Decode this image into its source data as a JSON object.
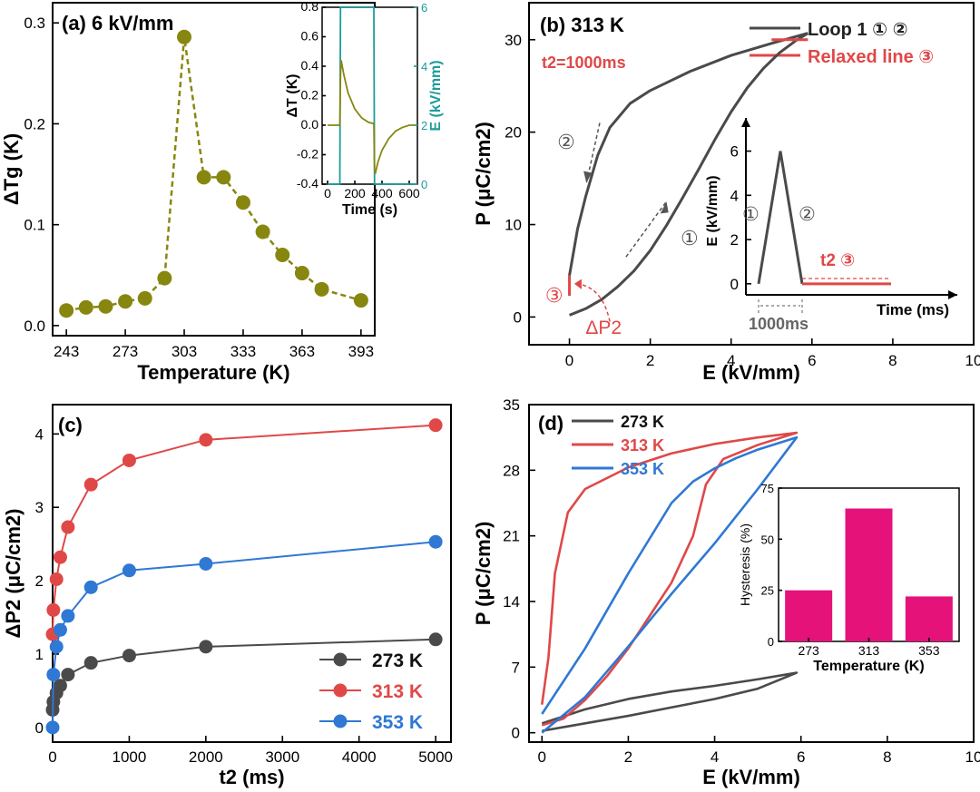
{
  "colors": {
    "olive": "#878710",
    "teal": "#1e9b9b",
    "gray": "#4a4a4a",
    "red": "#e04848",
    "blue": "#2f78d4",
    "magenta": "#e5127a"
  },
  "chart_data": [
    {
      "id": "a",
      "type": "line",
      "panel_label": "(a) 6 kV/mm",
      "xlabel": "Temperature (K)",
      "ylabel": "ΔTg (K)",
      "xlim": [
        236,
        400
      ],
      "ylim": [
        -0.01,
        0.32
      ],
      "xticks": [
        243,
        273,
        303,
        333,
        363,
        393
      ],
      "yticks": [
        0.0,
        0.1,
        0.2,
        0.3
      ],
      "series": [
        {
          "name": "ΔTg",
          "x": [
            243,
            253,
            263,
            273,
            283,
            293,
            303,
            313,
            323,
            333,
            343,
            353,
            363,
            373,
            393
          ],
          "y": [
            0.015,
            0.018,
            0.019,
            0.024,
            0.027,
            0.047,
            0.286,
            0.147,
            0.147,
            0.122,
            0.093,
            0.07,
            0.052,
            0.036,
            0.025
          ]
        }
      ],
      "inset": {
        "type": "line",
        "xlabel": "Time (s)",
        "ylabel_left": "ΔT (K)",
        "ylabel_right": "E (kV/mm)",
        "xlim": [
          -40,
          660
        ],
        "ylim_left": [
          -0.4,
          0.8
        ],
        "ylim_right": [
          0,
          6
        ],
        "xticks": [
          0,
          200,
          400,
          600
        ],
        "yticks_left": [
          -0.4,
          -0.2,
          0.0,
          0.2,
          0.4,
          0.6,
          0.8
        ],
        "yticks_right": [
          0,
          2,
          4,
          6
        ],
        "temp_trace": {
          "x": [
            0,
            90,
            95,
            100,
            120,
            150,
            200,
            250,
            300,
            340,
            345,
            350,
            370,
            400,
            450,
            500,
            550,
            600,
            640
          ],
          "y": [
            0.0,
            0.0,
            0.34,
            0.44,
            0.34,
            0.22,
            0.11,
            0.05,
            0.02,
            0.01,
            -0.3,
            -0.33,
            -0.25,
            -0.17,
            -0.09,
            -0.04,
            -0.015,
            0.0,
            0.0
          ]
        },
        "field_trace": {
          "x": [
            0,
            90,
            95,
            340,
            345,
            640
          ],
          "y": [
            0,
            0,
            6,
            6,
            0,
            0
          ]
        }
      }
    },
    {
      "id": "b",
      "type": "line",
      "panel_label": "(b) 313 K",
      "t2_label": "t2=1000ms",
      "xlabel": "E (kV/mm)",
      "ylabel": "P (μC/cm2)",
      "xlim": [
        -1,
        10
      ],
      "ylim": [
        -3,
        34
      ],
      "xticks": [
        0,
        2,
        4,
        6,
        8,
        10
      ],
      "yticks": [
        0,
        10,
        20,
        30
      ],
      "legend": [
        {
          "label": "Loop 1 ① ②",
          "color": "#4a4a4a"
        },
        {
          "label": "Relaxed line ③",
          "color": "#e04848"
        }
      ],
      "series": [
        {
          "name": "Loop 1 up ①",
          "x": [
            0.0,
            0.4,
            0.8,
            1.2,
            1.6,
            2.0,
            2.4,
            2.8,
            3.2,
            3.6,
            4.0,
            4.4,
            4.8,
            5.2,
            5.6,
            5.9
          ],
          "y": [
            0.2,
            0.9,
            1.9,
            3.3,
            5.0,
            7.2,
            9.9,
            12.9,
            16.0,
            19.2,
            22.2,
            24.8,
            26.9,
            28.6,
            29.9,
            30.7
          ]
        },
        {
          "name": "Loop 1 down ②",
          "x": [
            5.9,
            5.0,
            4.0,
            3.0,
            2.0,
            1.5,
            1.0,
            0.7,
            0.4,
            0.2,
            0.08,
            0.0
          ],
          "y": [
            30.7,
            29.6,
            28.3,
            26.6,
            24.5,
            23.1,
            20.5,
            17.5,
            13.0,
            9.5,
            6.5,
            4.5
          ]
        },
        {
          "name": "Relaxed line ③",
          "x": [
            0.0,
            0.0
          ],
          "y": [
            4.5,
            2.3
          ]
        },
        {
          "name": "Relaxed line ③ high field",
          "x": [
            5.0,
            5.9
          ],
          "y": [
            30.0,
            30.0
          ]
        }
      ],
      "annotations": [
        "②",
        "①",
        "③",
        "ΔP2"
      ],
      "inset": {
        "xlabel": "Time (ms)",
        "ylabel": "E (kV/mm)",
        "yticks": [
          0,
          2,
          4,
          6
        ],
        "ylim": [
          -0.5,
          7.5
        ],
        "triangle": {
          "x": [
            0,
            1,
            2
          ],
          "y": [
            0,
            6,
            0
          ]
        },
        "labels": [
          "①",
          "②",
          "t2 ③",
          "1000ms"
        ]
      }
    },
    {
      "id": "c",
      "type": "line",
      "panel_label": "(c)",
      "xlabel": "t2 (ms)",
      "ylabel": "ΔP2 (μC/cm2)",
      "xlim": [
        0,
        5200
      ],
      "ylim": [
        -0.2,
        4.4
      ],
      "xticks": [
        0,
        1000,
        2000,
        3000,
        4000,
        5000
      ],
      "yticks": [
        0,
        1,
        2,
        3,
        4
      ],
      "legend": [
        {
          "label": "273 K",
          "color": "#4a4a4a"
        },
        {
          "label": "313 K",
          "color": "#e04848"
        },
        {
          "label": "353 K",
          "color": "#2f78d4"
        }
      ],
      "series": [
        {
          "name": "273 K",
          "x": [
            0,
            10,
            50,
            100,
            200,
            500,
            1000,
            2000,
            5000
          ],
          "y": [
            0.24,
            0.35,
            0.47,
            0.57,
            0.72,
            0.88,
            0.98,
            1.1,
            1.2
          ]
        },
        {
          "name": "313 K",
          "x": [
            0,
            10,
            50,
            100,
            200,
            500,
            1000,
            2000,
            5000
          ],
          "y": [
            1.27,
            1.6,
            2.02,
            2.32,
            2.73,
            3.31,
            3.64,
            3.92,
            4.12
          ]
        },
        {
          "name": "353 K",
          "x": [
            0,
            10,
            50,
            100,
            200,
            500,
            1000,
            2000,
            5000
          ],
          "y": [
            0.0,
            0.72,
            1.1,
            1.33,
            1.52,
            1.91,
            2.14,
            2.23,
            2.53
          ]
        }
      ]
    },
    {
      "id": "d",
      "type": "line",
      "panel_label": "(d)",
      "xlabel": "E (kV/mm)",
      "ylabel": "P (μC/cm2)",
      "xlim": [
        -0.3,
        10
      ],
      "ylim": [
        -1,
        35
      ],
      "xticks": [
        0,
        2,
        4,
        6,
        8,
        10
      ],
      "yticks": [
        0,
        7,
        14,
        21,
        28,
        35
      ],
      "legend": [
        {
          "label": "273 K",
          "color": "#4a4a4a"
        },
        {
          "label": "313 K",
          "color": "#e04848"
        },
        {
          "label": "353 K",
          "color": "#2f78d4"
        }
      ],
      "series": [
        {
          "name": "273 K",
          "x": [
            0.0,
            1.0,
            2.0,
            3.0,
            4.0,
            5.0,
            5.9,
            5.0,
            4.0,
            3.0,
            2.0,
            1.0,
            0.0
          ],
          "y": [
            0.2,
            1.0,
            1.8,
            2.7,
            3.6,
            4.7,
            6.4,
            5.7,
            5.0,
            4.4,
            3.6,
            2.5,
            1.0
          ]
        },
        {
          "name": "313 K",
          "x": [
            0.0,
            0.5,
            1.0,
            1.5,
            2.0,
            2.5,
            3.0,
            3.5,
            3.8,
            4.2,
            5.0,
            5.9,
            5.0,
            4.0,
            3.0,
            2.0,
            1.0,
            0.6,
            0.3,
            0.15,
            0.0
          ],
          "y": [
            0.8,
            1.5,
            3.5,
            6.0,
            9.0,
            12.5,
            16.0,
            21.0,
            26.5,
            29.2,
            30.7,
            32.0,
            31.5,
            30.8,
            29.8,
            28.3,
            26.0,
            23.5,
            17.0,
            8.0,
            3.0
          ]
        },
        {
          "name": "353 K",
          "x": [
            0.0,
            1.0,
            2.0,
            3.0,
            4.0,
            5.0,
            5.9,
            5.0,
            4.5,
            4.0,
            3.5,
            3.0,
            2.0,
            1.0,
            0.0
          ],
          "y": [
            0.0,
            3.8,
            9.2,
            14.8,
            20.2,
            26.0,
            31.5,
            30.2,
            29.3,
            28.2,
            26.8,
            24.5,
            17.0,
            9.0,
            2.0
          ]
        }
      ],
      "inset": {
        "type": "bar",
        "xlabel": "Temperature (K)",
        "ylabel": "Hysteresis (%)",
        "categories": [
          "273",
          "313",
          "353"
        ],
        "values": [
          25,
          65,
          22
        ],
        "ylim": [
          0,
          75
        ],
        "yticks": [
          0,
          25,
          50,
          75
        ]
      }
    }
  ]
}
